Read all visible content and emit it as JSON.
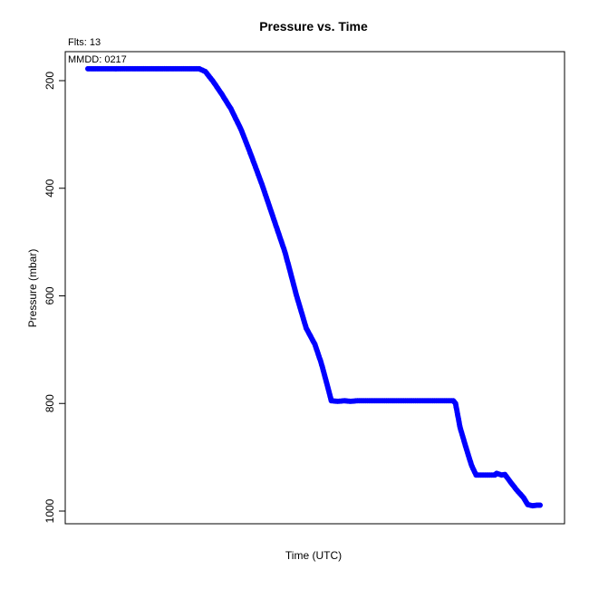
{
  "chart_data": {
    "type": "scatter",
    "title": "Pressure  vs. Time",
    "annotations": {
      "flts": "Flts: 13",
      "mmdd": "MMDD: 0217"
    },
    "xlabel": "Time (UTC)",
    "ylabel": "Pressure (mbar)",
    "y_reversed": true,
    "ylim": [
      1020,
      160
    ],
    "yticks": [
      200,
      400,
      600,
      800,
      1000
    ],
    "xlim": [
      0,
      100
    ],
    "grid": false,
    "point_color": "#0000ff",
    "series": [
      {
        "x": [
          0,
          2.4,
          4.9,
          7.3,
          9.8,
          12.2,
          14.7,
          17.1,
          19.5,
          22,
          24.4,
          25.7,
          27.3,
          29.3,
          31.3,
          33.6,
          35.8,
          38.2,
          40.6,
          43.2,
          45.7,
          47.8,
          49.7,
          51.1,
          52.6,
          53.3,
          54.7,
          56.2,
          57.5,
          59,
          62,
          65,
          68,
          71,
          74,
          77,
          80,
          80.5,
          81.5,
          82.9,
          84,
          85,
          86,
          88,
          89.1,
          89.5,
          90.6,
          91.3,
          92.7,
          94,
          95.4,
          96.3,
          97.4,
          98.3,
          99
        ],
        "y": [
          178,
          178,
          178,
          178,
          178,
          178,
          178,
          178,
          178,
          178,
          178,
          183,
          200,
          225,
          252,
          292,
          340,
          395,
          455,
          520,
          600,
          660,
          690,
          725,
          772,
          795,
          796,
          795,
          796,
          795,
          795,
          795,
          795,
          795,
          795,
          795,
          795,
          800,
          845,
          885,
          915,
          933,
          933,
          933,
          933,
          930,
          933,
          932,
          948,
          962,
          975,
          988,
          990,
          989,
          989
        ]
      }
    ]
  }
}
